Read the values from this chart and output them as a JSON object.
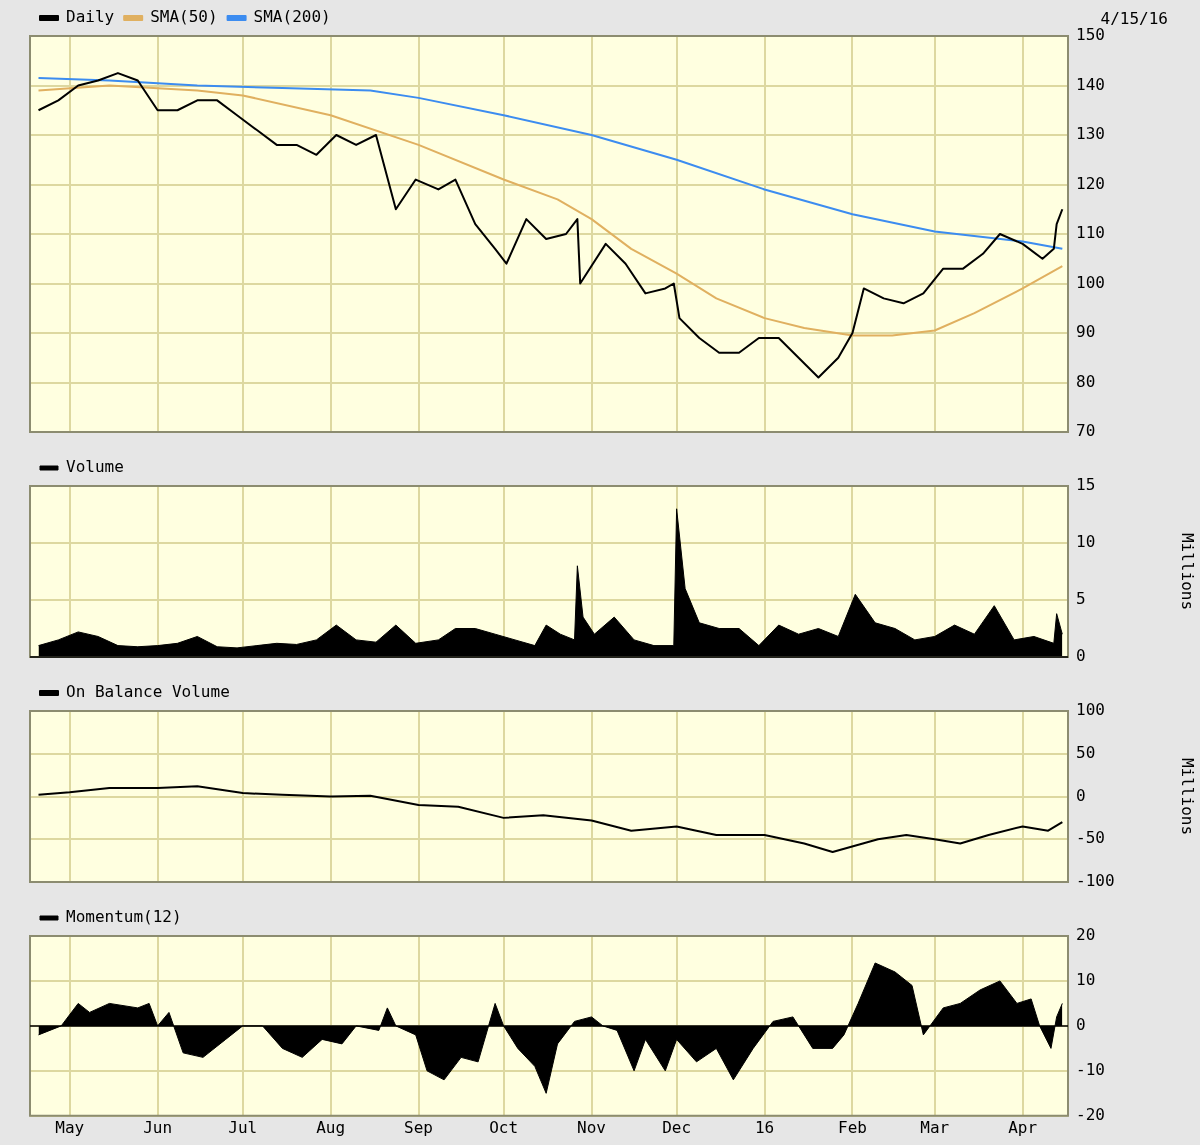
{
  "chart_data": [
    {
      "type": "line",
      "legend": "top left",
      "grid": true,
      "marker": "none",
      "tick_labels": "y",
      "annotations": [
        "4/15/16"
      ],
      "xlim": [
        "2015-04-17",
        "2016-04-17"
      ],
      "xticks": [
        {
          "value": "2015-05-01",
          "label": null
        },
        {
          "value": "2015-06-01",
          "label": null
        },
        {
          "value": "2015-07-01",
          "label": null
        },
        {
          "value": "2015-08-01",
          "label": null
        },
        {
          "value": "2015-09-01",
          "label": null
        },
        {
          "value": "2015-10-01",
          "label": null
        },
        {
          "value": "2015-11-01",
          "label": null
        },
        {
          "value": "2015-12-01",
          "label": null
        },
        {
          "value": "2016-01-01",
          "label": null
        },
        {
          "value": "2016-02-01",
          "label": null
        },
        {
          "value": "2016-03-01",
          "label": null
        },
        {
          "value": "2016-04-01",
          "label": null
        }
      ],
      "ylim": [
        70,
        150
      ],
      "yticks": [
        70,
        80,
        90,
        100,
        110,
        120,
        130,
        140,
        150
      ],
      "series": [
        {
          "name": "Daily",
          "color": "#000000",
          "x": [
            "2015-04-20",
            "2015-04-27",
            "2015-05-04",
            "2015-05-11",
            "2015-05-18",
            "2015-05-25",
            "2015-06-01",
            "2015-06-08",
            "2015-06-15",
            "2015-06-22",
            "2015-06-29",
            "2015-07-06",
            "2015-07-13",
            "2015-07-20",
            "2015-07-27",
            "2015-08-03",
            "2015-08-10",
            "2015-08-17",
            "2015-08-24",
            "2015-08-31",
            "2015-09-08",
            "2015-09-14",
            "2015-09-21",
            "2015-09-28",
            "2015-10-02",
            "2015-10-09",
            "2015-10-16",
            "2015-10-23",
            "2015-10-27",
            "2015-10-28",
            "2015-11-06",
            "2015-11-13",
            "2015-11-20",
            "2015-11-27",
            "2015-11-30",
            "2015-12-02",
            "2015-12-09",
            "2015-12-16",
            "2015-12-23",
            "2015-12-30",
            "2016-01-06",
            "2016-01-13",
            "2016-01-20",
            "2016-01-27",
            "2016-02-01",
            "2016-02-05",
            "2016-02-12",
            "2016-02-19",
            "2016-02-26",
            "2016-03-04",
            "2016-03-11",
            "2016-03-18",
            "2016-03-24",
            "2016-04-01",
            "2016-04-08",
            "2016-04-12",
            "2016-04-13",
            "2016-04-15"
          ],
          "values": [
            135,
            137,
            140,
            141,
            142.5,
            141,
            135,
            135,
            137,
            137,
            134,
            131,
            128,
            128,
            126,
            130,
            128,
            130,
            115,
            121,
            119,
            121,
            112,
            107,
            104,
            113,
            109,
            110,
            113,
            100,
            108,
            104,
            98,
            99,
            100,
            93,
            89,
            86,
            86,
            89,
            89,
            85,
            81,
            85,
            90,
            99,
            97,
            96,
            98,
            103,
            103,
            106,
            110,
            108,
            105,
            107,
            112,
            115
          ]
        },
        {
          "name": "SMA(50)",
          "color": "#e0b060",
          "x": [
            "2015-04-20",
            "2015-05-15",
            "2015-06-15",
            "2015-07-01",
            "2015-08-01",
            "2015-09-01",
            "2015-10-01",
            "2015-10-20",
            "2015-11-01",
            "2015-11-15",
            "2015-12-01",
            "2015-12-15",
            "2016-01-01",
            "2016-01-15",
            "2016-02-01",
            "2016-02-15",
            "2016-03-01",
            "2016-03-15",
            "2016-04-01",
            "2016-04-15"
          ],
          "values": [
            139,
            140,
            139,
            138,
            134,
            128,
            121,
            117,
            113,
            107,
            102,
            97,
            93,
            91,
            89.5,
            89.5,
            90.5,
            94,
            99,
            103.5
          ]
        },
        {
          "name": "SMA(200)",
          "color": "#3c8cf0",
          "x": [
            "2015-04-20",
            "2015-05-15",
            "2015-06-15",
            "2015-07-15",
            "2015-08-15",
            "2015-09-01",
            "2015-10-01",
            "2015-11-01",
            "2015-12-01",
            "2016-01-01",
            "2016-02-01",
            "2016-03-01",
            "2016-04-01",
            "2016-04-15"
          ],
          "values": [
            141.5,
            141,
            140,
            139.5,
            139,
            137.5,
            134,
            130,
            125,
            119,
            114,
            110.5,
            108.5,
            107
          ]
        }
      ]
    },
    {
      "type": "area",
      "legend": "top left",
      "grid": true,
      "tick_labels": "y",
      "ylabel": "Millions",
      "xlim": [
        "2015-04-17",
        "2016-04-17"
      ],
      "xticks": [
        {
          "value": "2015-05-01",
          "label": null
        },
        {
          "value": "2015-06-01",
          "label": null
        },
        {
          "value": "2015-07-01",
          "label": null
        },
        {
          "value": "2015-08-01",
          "label": null
        },
        {
          "value": "2015-09-01",
          "label": null
        },
        {
          "value": "2015-10-01",
          "label": null
        },
        {
          "value": "2015-11-01",
          "label": null
        },
        {
          "value": "2015-12-01",
          "label": null
        },
        {
          "value": "2016-01-01",
          "label": null
        },
        {
          "value": "2016-02-01",
          "label": null
        },
        {
          "value": "2016-03-01",
          "label": null
        },
        {
          "value": "2016-04-01",
          "label": null
        }
      ],
      "ylim": [
        0,
        15
      ],
      "yticks": [
        0,
        5,
        10,
        15
      ],
      "series": [
        {
          "name": "Volume",
          "color": "#000000",
          "x": [
            "2015-04-20",
            "2015-04-27",
            "2015-05-04",
            "2015-05-11",
            "2015-05-18",
            "2015-05-25",
            "2015-06-01",
            "2015-06-08",
            "2015-06-15",
            "2015-06-22",
            "2015-06-29",
            "2015-07-06",
            "2015-07-13",
            "2015-07-20",
            "2015-07-27",
            "2015-08-03",
            "2015-08-10",
            "2015-08-17",
            "2015-08-24",
            "2015-08-31",
            "2015-09-08",
            "2015-09-14",
            "2015-09-21",
            "2015-09-28",
            "2015-10-05",
            "2015-10-12",
            "2015-10-16",
            "2015-10-21",
            "2015-10-26",
            "2015-10-27",
            "2015-10-29",
            "2015-11-02",
            "2015-11-09",
            "2015-11-16",
            "2015-11-23",
            "2015-11-30",
            "2015-12-01",
            "2015-12-04",
            "2015-12-09",
            "2015-12-16",
            "2015-12-23",
            "2015-12-30",
            "2016-01-06",
            "2016-01-13",
            "2016-01-20",
            "2016-01-27",
            "2016-02-02",
            "2016-02-09",
            "2016-02-16",
            "2016-02-23",
            "2016-03-01",
            "2016-03-08",
            "2016-03-15",
            "2016-03-22",
            "2016-03-29",
            "2016-04-05",
            "2016-04-12",
            "2016-04-13",
            "2016-04-15"
          ],
          "values": [
            1.0,
            1.5,
            2.2,
            1.8,
            1.0,
            0.9,
            1.0,
            1.2,
            1.8,
            0.9,
            0.8,
            1.0,
            1.2,
            1.1,
            1.5,
            2.8,
            1.5,
            1.3,
            2.8,
            1.2,
            1.5,
            2.5,
            2.5,
            2.0,
            1.5,
            1.0,
            2.8,
            2.0,
            1.5,
            8.0,
            3.5,
            2.0,
            3.5,
            1.5,
            1.0,
            1.0,
            13.0,
            6.0,
            3.0,
            2.5,
            2.5,
            1.0,
            2.8,
            2.0,
            2.5,
            1.8,
            5.5,
            3.0,
            2.5,
            1.5,
            1.8,
            2.8,
            2.0,
            4.5,
            1.5,
            1.8,
            1.2,
            3.8,
            2.0
          ]
        }
      ]
    },
    {
      "type": "line",
      "legend": "top left",
      "grid": true,
      "marker": "none",
      "tick_labels": "y",
      "ylabel": "Millions",
      "xlim": [
        "2015-04-17",
        "2016-04-17"
      ],
      "xticks": [
        {
          "value": "2015-05-01",
          "label": null
        },
        {
          "value": "2015-06-01",
          "label": null
        },
        {
          "value": "2015-07-01",
          "label": null
        },
        {
          "value": "2015-08-01",
          "label": null
        },
        {
          "value": "2015-09-01",
          "label": null
        },
        {
          "value": "2015-10-01",
          "label": null
        },
        {
          "value": "2015-11-01",
          "label": null
        },
        {
          "value": "2015-12-01",
          "label": null
        },
        {
          "value": "2016-01-01",
          "label": null
        },
        {
          "value": "2016-02-01",
          "label": null
        },
        {
          "value": "2016-03-01",
          "label": null
        },
        {
          "value": "2016-04-01",
          "label": null
        }
      ],
      "ylim": [
        -100,
        100
      ],
      "yticks": [
        -100,
        -50,
        0,
        50,
        100
      ],
      "series": [
        {
          "name": "On Balance Volume",
          "color": "#000000",
          "x": [
            "2015-04-20",
            "2015-05-01",
            "2015-05-15",
            "2015-06-01",
            "2015-06-15",
            "2015-07-01",
            "2015-07-15",
            "2015-08-01",
            "2015-08-15",
            "2015-09-01",
            "2015-09-15",
            "2015-10-01",
            "2015-10-15",
            "2015-11-01",
            "2015-11-15",
            "2015-12-01",
            "2015-12-15",
            "2016-01-01",
            "2016-01-15",
            "2016-01-25",
            "2016-02-10",
            "2016-02-20",
            "2016-03-01",
            "2016-03-10",
            "2016-03-20",
            "2016-04-01",
            "2016-04-10",
            "2016-04-15"
          ],
          "values": [
            2,
            5,
            10,
            10,
            12,
            4,
            2,
            0,
            1,
            -10,
            -12,
            -25,
            -22,
            -28,
            -40,
            -35,
            -45,
            -45,
            -55,
            -65,
            -50,
            -45,
            -50,
            -55,
            -45,
            -35,
            -40,
            -30
          ]
        }
      ]
    },
    {
      "type": "area",
      "legend": "top left",
      "grid": true,
      "xlim": [
        "2015-04-17",
        "2016-04-17"
      ],
      "xticks": [
        {
          "value": "2015-05-01",
          "label": "May"
        },
        {
          "value": "2015-06-01",
          "label": "Jun"
        },
        {
          "value": "2015-07-01",
          "label": "Jul"
        },
        {
          "value": "2015-08-01",
          "label": "Aug"
        },
        {
          "value": "2015-09-01",
          "label": "Sep"
        },
        {
          "value": "2015-10-01",
          "label": "Oct"
        },
        {
          "value": "2015-11-01",
          "label": "Nov"
        },
        {
          "value": "2015-12-01",
          "label": "Dec"
        },
        {
          "value": "2016-01-01",
          "label": "16"
        },
        {
          "value": "2016-02-01",
          "label": "Feb"
        },
        {
          "value": "2016-03-01",
          "label": "Mar"
        },
        {
          "value": "2016-04-01",
          "label": "Apr"
        }
      ],
      "ylim": [
        -20,
        20
      ],
      "yticks": [
        -20,
        -10,
        0,
        10,
        20
      ],
      "series": [
        {
          "name": "Momentum(12)",
          "color": "#000000",
          "x": [
            "2015-04-20",
            "2015-04-28",
            "2015-05-04",
            "2015-05-08",
            "2015-05-15",
            "2015-05-25",
            "2015-05-29",
            "2015-06-01",
            "2015-06-05",
            "2015-06-10",
            "2015-06-17",
            "2015-06-25",
            "2015-07-01",
            "2015-07-08",
            "2015-07-15",
            "2015-07-22",
            "2015-07-29",
            "2015-08-05",
            "2015-08-10",
            "2015-08-18",
            "2015-08-21",
            "2015-08-24",
            "2015-08-31",
            "2015-09-04",
            "2015-09-10",
            "2015-09-16",
            "2015-09-22",
            "2015-09-28",
            "2015-10-01",
            "2015-10-06",
            "2015-10-12",
            "2015-10-16",
            "2015-10-20",
            "2015-10-26",
            "2015-11-01",
            "2015-11-05",
            "2015-11-10",
            "2015-11-16",
            "2015-11-20",
            "2015-11-27",
            "2015-12-01",
            "2015-12-08",
            "2015-12-15",
            "2015-12-21",
            "2015-12-28",
            "2016-01-04",
            "2016-01-11",
            "2016-01-18",
            "2016-01-25",
            "2016-01-29",
            "2016-02-03",
            "2016-02-09",
            "2016-02-16",
            "2016-02-22",
            "2016-02-26",
            "2016-03-04",
            "2016-03-10",
            "2016-03-17",
            "2016-03-24",
            "2016-03-30",
            "2016-04-04",
            "2016-04-07",
            "2016-04-11",
            "2016-04-13",
            "2016-04-15"
          ],
          "values": [
            -2,
            0,
            5,
            3,
            5,
            4,
            5,
            0,
            3,
            -6,
            -7,
            -3,
            0,
            0,
            -5,
            -7,
            -3,
            -4,
            0,
            -1,
            4,
            0,
            -2,
            -10,
            -12,
            -7,
            -8,
            5,
            0,
            -5,
            -9,
            -15,
            -4,
            1,
            2,
            0,
            -1,
            -10,
            -3,
            -10,
            -3,
            -8,
            -5,
            -12,
            -5,
            1,
            2,
            -5,
            -5,
            -2,
            5,
            14,
            12,
            9,
            -2,
            4,
            5,
            8,
            10,
            5,
            6,
            0,
            -5,
            2,
            5
          ]
        }
      ]
    }
  ]
}
